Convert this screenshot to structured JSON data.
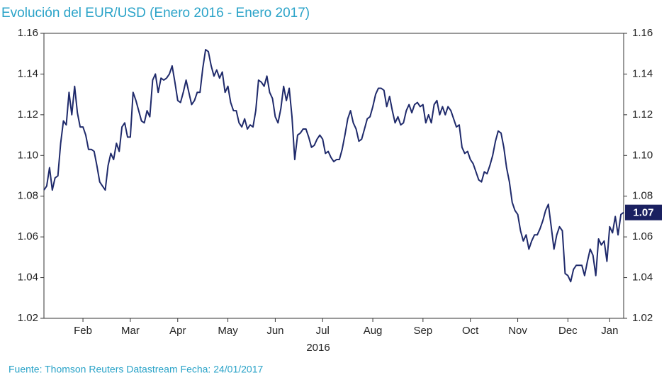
{
  "chart_data": {
    "type": "line",
    "title": "Evolución del EUR/USD (Enero 2016 - Enero 2017)",
    "source": "Fuente: Thomson Reuters Datastream Fecha: 24/01/2017",
    "x_label": "2016",
    "last_value_label": "1.07",
    "color": "#1f2a6b",
    "xlim": [
      0,
      208
    ],
    "xticks": [
      {
        "value": 14,
        "label": "Feb"
      },
      {
        "value": 31,
        "label": "Mar"
      },
      {
        "value": 48,
        "label": "Apr"
      },
      {
        "value": 66,
        "label": "May"
      },
      {
        "value": 83,
        "label": "Jun"
      },
      {
        "value": 100,
        "label": "Jul"
      },
      {
        "value": 118,
        "label": "Aug"
      },
      {
        "value": 136,
        "label": "Sep"
      },
      {
        "value": 153,
        "label": "Oct"
      },
      {
        "value": 170,
        "label": "Nov"
      },
      {
        "value": 188,
        "label": "Dec"
      },
      {
        "value": 203,
        "label": "Jan"
      }
    ],
    "ylim": [
      1.02,
      1.16
    ],
    "yticks": [
      1.02,
      1.04,
      1.06,
      1.08,
      {
        "value": 1.1,
        "label": "1.10"
      },
      1.12,
      1.14,
      1.16
    ],
    "values": [
      1.083,
      1.085,
      1.094,
      1.083,
      1.089,
      1.09,
      1.106,
      1.117,
      1.115,
      1.131,
      1.12,
      1.134,
      1.121,
      1.114,
      1.114,
      1.11,
      1.103,
      1.103,
      1.102,
      1.095,
      1.087,
      1.085,
      1.083,
      1.095,
      1.101,
      1.098,
      1.106,
      1.102,
      1.114,
      1.116,
      1.109,
      1.109,
      1.131,
      1.127,
      1.122,
      1.117,
      1.116,
      1.122,
      1.119,
      1.137,
      1.14,
      1.131,
      1.138,
      1.137,
      1.138,
      1.14,
      1.144,
      1.136,
      1.127,
      1.126,
      1.131,
      1.137,
      1.131,
      1.125,
      1.127,
      1.131,
      1.131,
      1.143,
      1.152,
      1.151,
      1.144,
      1.139,
      1.142,
      1.138,
      1.141,
      1.131,
      1.134,
      1.126,
      1.122,
      1.122,
      1.116,
      1.114,
      1.118,
      1.113,
      1.115,
      1.114,
      1.122,
      1.137,
      1.136,
      1.134,
      1.139,
      1.131,
      1.128,
      1.119,
      1.116,
      1.123,
      1.134,
      1.127,
      1.133,
      1.119,
      1.098,
      1.11,
      1.111,
      1.113,
      1.113,
      1.109,
      1.104,
      1.105,
      1.108,
      1.11,
      1.108,
      1.101,
      1.102,
      1.099,
      1.097,
      1.098,
      1.098,
      1.103,
      1.11,
      1.118,
      1.122,
      1.116,
      1.113,
      1.107,
      1.108,
      1.113,
      1.118,
      1.119,
      1.124,
      1.13,
      1.133,
      1.133,
      1.132,
      1.124,
      1.129,
      1.122,
      1.116,
      1.119,
      1.115,
      1.116,
      1.122,
      1.125,
      1.121,
      1.125,
      1.126,
      1.124,
      1.125,
      1.116,
      1.12,
      1.116,
      1.125,
      1.127,
      1.12,
      1.124,
      1.12,
      1.124,
      1.122,
      1.118,
      1.114,
      1.115,
      1.104,
      1.101,
      1.102,
      1.098,
      1.096,
      1.092,
      1.088,
      1.087,
      1.092,
      1.091,
      1.095,
      1.1,
      1.107,
      1.112,
      1.111,
      1.104,
      1.094,
      1.087,
      1.077,
      1.073,
      1.071,
      1.063,
      1.058,
      1.061,
      1.054,
      1.058,
      1.061,
      1.061,
      1.064,
      1.068,
      1.073,
      1.076,
      1.065,
      1.054,
      1.061,
      1.065,
      1.063,
      1.042,
      1.041,
      1.038,
      1.044,
      1.046,
      1.046,
      1.046,
      1.041,
      1.048,
      1.054,
      1.051,
      1.041,
      1.059,
      1.056,
      1.058,
      1.048,
      1.065,
      1.062,
      1.07,
      1.061,
      1.071,
      1.072
    ]
  }
}
